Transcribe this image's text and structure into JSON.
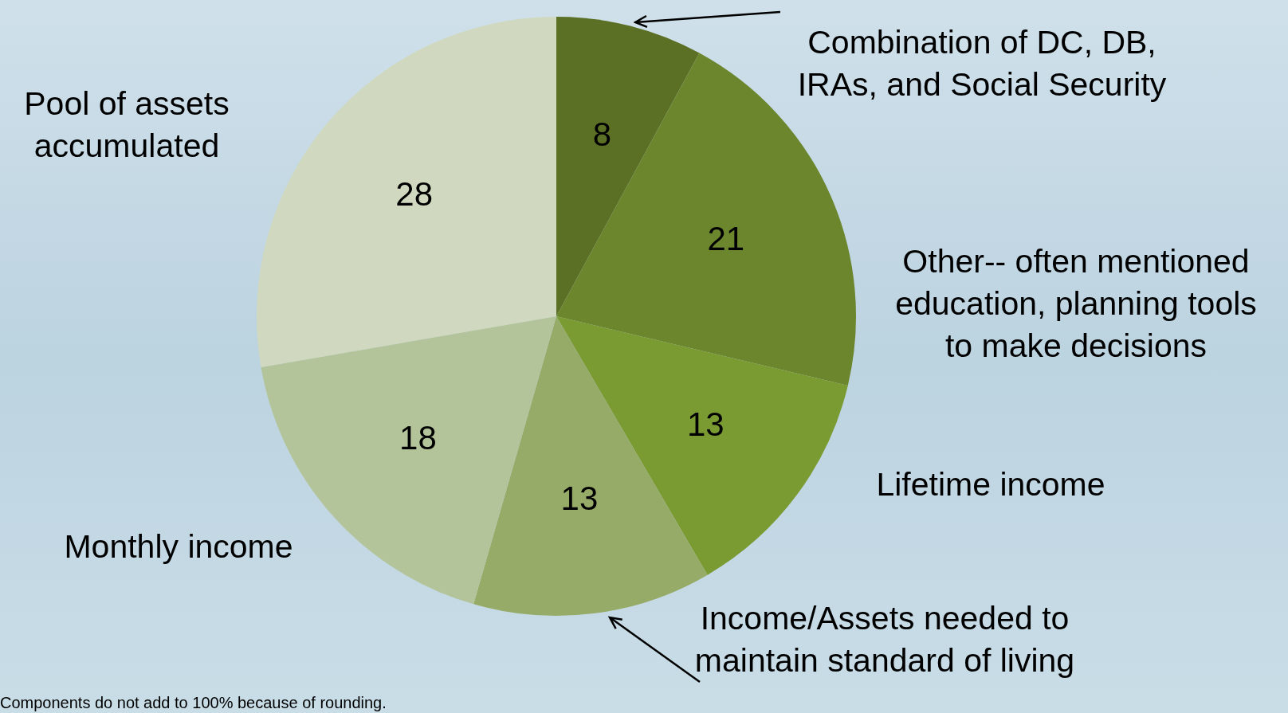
{
  "chart_data": {
    "type": "pie",
    "categories": [
      "Combination of DC, DB, IRAs, and Social Security",
      "Other-- often mentioned education, planning tools to make decisions",
      "Lifetime income",
      "Income/Assets needed to maintain standard of living",
      "Monthly income",
      "Pool of assets accumulated"
    ],
    "values": [
      8,
      21,
      13,
      13,
      18,
      28
    ],
    "colors": [
      "#5b7024",
      "#6b862c",
      "#7a9a32",
      "#97ab68",
      "#b4c49a",
      "#d0d9bf"
    ],
    "data_labels": true,
    "legend": false,
    "annotations": [
      "Components do not add to 100% because of rounding."
    ]
  }
}
